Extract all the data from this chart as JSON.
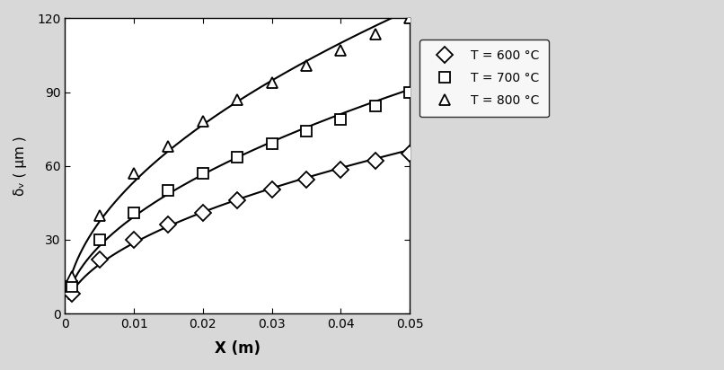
{
  "title": "",
  "xlabel": "X (m)",
  "ylabel": "δᵥ ( μm )",
  "xlim": [
    0,
    0.05
  ],
  "ylim": [
    0,
    120
  ],
  "xticks": [
    0,
    0.01,
    0.02,
    0.03,
    0.04,
    0.05
  ],
  "yticks": [
    0,
    30,
    60,
    90,
    120
  ],
  "series": [
    {
      "label": "T = 600 °C",
      "marker": "D",
      "x": [
        0.001,
        0.005,
        0.01,
        0.015,
        0.02,
        0.025,
        0.03,
        0.035,
        0.04,
        0.045,
        0.05
      ],
      "y": [
        8.0,
        22.0,
        30.0,
        36.0,
        41.0,
        46.0,
        50.5,
        54.5,
        58.5,
        62.0,
        65.0
      ]
    },
    {
      "label": "T = 700 °C",
      "marker": "s",
      "x": [
        0.001,
        0.005,
        0.01,
        0.015,
        0.02,
        0.025,
        0.03,
        0.035,
        0.04,
        0.045,
        0.05
      ],
      "y": [
        11.0,
        30.0,
        41.0,
        50.0,
        57.0,
        63.5,
        69.0,
        74.0,
        79.0,
        84.5,
        90.0
      ]
    },
    {
      "label": "T = 800 °C",
      "marker": "^",
      "x": [
        0.001,
        0.005,
        0.01,
        0.015,
        0.02,
        0.025,
        0.03,
        0.035,
        0.04,
        0.045,
        0.05
      ],
      "y": [
        15.0,
        40.0,
        57.0,
        68.0,
        78.0,
        87.0,
        94.0,
        101.0,
        107.0,
        113.5,
        120.0
      ]
    }
  ],
  "figure_facecolor": "#d8d8d8",
  "axes_facecolor": "#ffffff",
  "markersize": 8,
  "linewidth": 1.5
}
